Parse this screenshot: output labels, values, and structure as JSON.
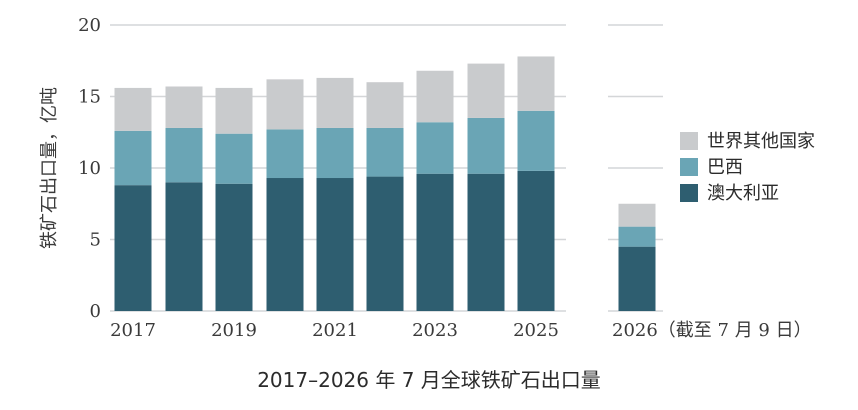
{
  "caption": "2017–2026 年 7 月全球铁矿石出口量",
  "chart_data": {
    "type": "bar",
    "stacked": true,
    "title": "",
    "xlabel": "",
    "ylabel": "铁矿石出口量，亿吨",
    "ylim": [
      0,
      20
    ],
    "yticks": [
      0,
      5,
      10,
      15,
      20
    ],
    "grid": true,
    "legend_position": "right",
    "categories": [
      "2017",
      "2018",
      "2019",
      "2020",
      "2021",
      "2022",
      "2023",
      "2024",
      "2025",
      "2026"
    ],
    "x_tick_labels": [
      "2017",
      "",
      "2019",
      "",
      "2021",
      "",
      "2023",
      "",
      "2025",
      "2026（截至 7 月 9 日）"
    ],
    "series": [
      {
        "name": "澳大利亚",
        "color": "#2e5e70",
        "values": [
          8.8,
          9.0,
          8.9,
          9.3,
          9.3,
          9.4,
          9.6,
          9.6,
          9.8,
          4.5
        ]
      },
      {
        "name": "巴西",
        "color": "#6aa5b5",
        "values": [
          3.8,
          3.8,
          3.5,
          3.4,
          3.5,
          3.4,
          3.6,
          3.9,
          4.2,
          1.4
        ]
      },
      {
        "name": "世界其他国家",
        "color": "#c9cbcd",
        "values": [
          3.0,
          2.9,
          3.2,
          3.5,
          3.5,
          3.2,
          3.6,
          3.8,
          3.8,
          1.6
        ]
      }
    ],
    "legend_order": [
      "世界其他国家",
      "巴西",
      "澳大利亚"
    ],
    "grid_color": "#d4d6d8"
  }
}
